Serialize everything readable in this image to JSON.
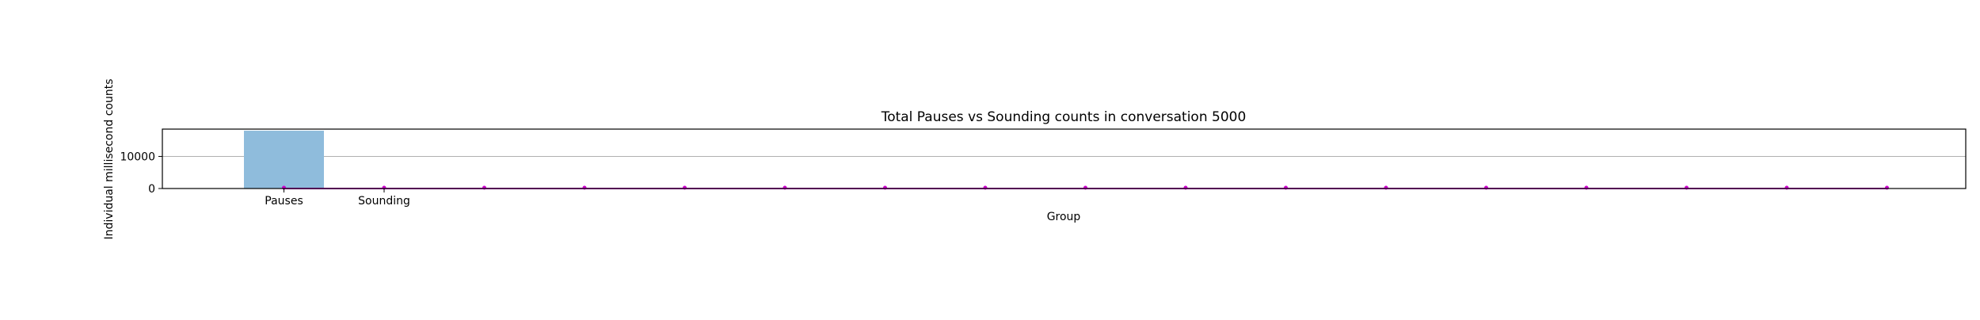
{
  "chart_data": {
    "type": "bar",
    "title": "Total Pauses vs Sounding counts in conversation 5000",
    "xlabel": "Group",
    "ylabel": "Individual millisecond counts",
    "categories": [
      "Pauses",
      "Sounding"
    ],
    "values": [
      18000,
      0
    ],
    "ylim": [
      0,
      18500
    ],
    "yticks": [
      0,
      10000
    ],
    "grid": true,
    "bar_color": "#8fbcdc",
    "line_series": {
      "color": "#cc00cc",
      "point_count": 17,
      "values": [
        0,
        0,
        0,
        0,
        0,
        0,
        0,
        0,
        0,
        0,
        0,
        0,
        0,
        0,
        0,
        0,
        0
      ]
    }
  }
}
